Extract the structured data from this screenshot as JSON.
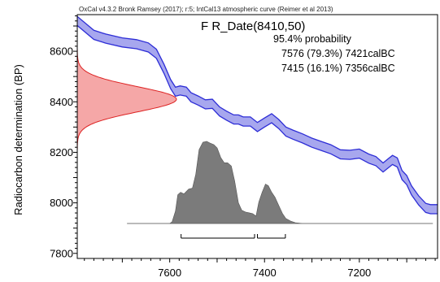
{
  "header": {
    "software_line": "OxCal v4.3.2 Bronk Ramsey (2017); r:5; IntCal13 atmospheric curve (Reimer et al 2013)"
  },
  "title": "F R_Date(8410,50)",
  "probability": {
    "heading": "95.4% probability",
    "ranges": [
      {
        "text": "7576 (79.3%) 7421calBC",
        "from": 7576,
        "to": 7421
      },
      {
        "text": "7415 (16.1%) 7356calBC",
        "from": 7415,
        "to": 7356
      }
    ]
  },
  "colors": {
    "curve_fill": "#a7a7ee",
    "curve_stroke": "#2d2dd6",
    "measurement_fill": "#f5a7a7",
    "measurement_stroke": "#dd2222",
    "posterior_fill": "#7b7b7b",
    "posterior_stroke": "#555555",
    "baseline": "#999999"
  },
  "chart_data": {
    "type": "area",
    "ylabel": "Radiocarbon determination (BP)",
    "x_reversed": true,
    "xlim": [
      7795,
      7035
    ],
    "ylim": [
      7780,
      8745
    ],
    "x_ticks": [
      7600,
      7400,
      7200
    ],
    "y_ticks": [
      7800,
      8000,
      8200,
      8400,
      8600
    ],
    "calibration_curve": {
      "x": [
        7795,
        7760,
        7735,
        7700,
        7670,
        7645,
        7628,
        7612,
        7598,
        7588,
        7578,
        7565,
        7555,
        7540,
        7525,
        7510,
        7495,
        7480,
        7465,
        7455,
        7445,
        7430,
        7415,
        7400,
        7385,
        7370,
        7355,
        7340,
        7320,
        7300,
        7280,
        7260,
        7240,
        7220,
        7200,
        7180,
        7165,
        7150,
        7140,
        7130,
        7120,
        7110,
        7100,
        7090,
        7075,
        7060,
        7050,
        7035
      ],
      "mean": [
        8720,
        8665,
        8650,
        8635,
        8628,
        8615,
        8590,
        8530,
        8470,
        8440,
        8445,
        8440,
        8418,
        8405,
        8390,
        8392,
        8362,
        8345,
        8330,
        8330,
        8322,
        8322,
        8300,
        8318,
        8335,
        8312,
        8282,
        8270,
        8255,
        8238,
        8225,
        8212,
        8192,
        8190,
        8195,
        8175,
        8165,
        8140,
        8155,
        8170,
        8160,
        8110,
        8090,
        8050,
        8010,
        7980,
        7975,
        7975
      ],
      "sigma": [
        18,
        18,
        18,
        18,
        18,
        18,
        18,
        18,
        18,
        18,
        18,
        18,
        18,
        18,
        18,
        18,
        18,
        18,
        18,
        18,
        18,
        18,
        18,
        18,
        18,
        18,
        18,
        18,
        18,
        18,
        18,
        18,
        18,
        18,
        18,
        18,
        18,
        18,
        18,
        18,
        18,
        18,
        18,
        18,
        18,
        18,
        18,
        18
      ]
    },
    "measurement": {
      "mean": 8410,
      "sigma": 50
    },
    "posterior": {
      "x": [
        7690,
        7600,
        7595,
        7588,
        7583,
        7577,
        7570,
        7560,
        7552,
        7545,
        7538,
        7530,
        7522,
        7515,
        7507,
        7500,
        7492,
        7485,
        7478,
        7470,
        7463,
        7455,
        7448,
        7440,
        7432,
        7425,
        7418,
        7412,
        7405,
        7398,
        7392,
        7385,
        7378,
        7370,
        7362,
        7355,
        7345,
        7335,
        7320,
        7300,
        7100,
        7045
      ],
      "y": [
        0,
        0,
        0.02,
        0.15,
        0.35,
        0.38,
        0.36,
        0.42,
        0.43,
        0.6,
        0.9,
        0.99,
        1.0,
        0.98,
        0.96,
        0.92,
        0.8,
        0.74,
        0.74,
        0.7,
        0.52,
        0.25,
        0.16,
        0.14,
        0.13,
        0.12,
        0.09,
        0.26,
        0.38,
        0.48,
        0.46,
        0.38,
        0.32,
        0.22,
        0.12,
        0.06,
        0.03,
        0.01,
        0,
        0,
        0,
        0
      ]
    }
  }
}
